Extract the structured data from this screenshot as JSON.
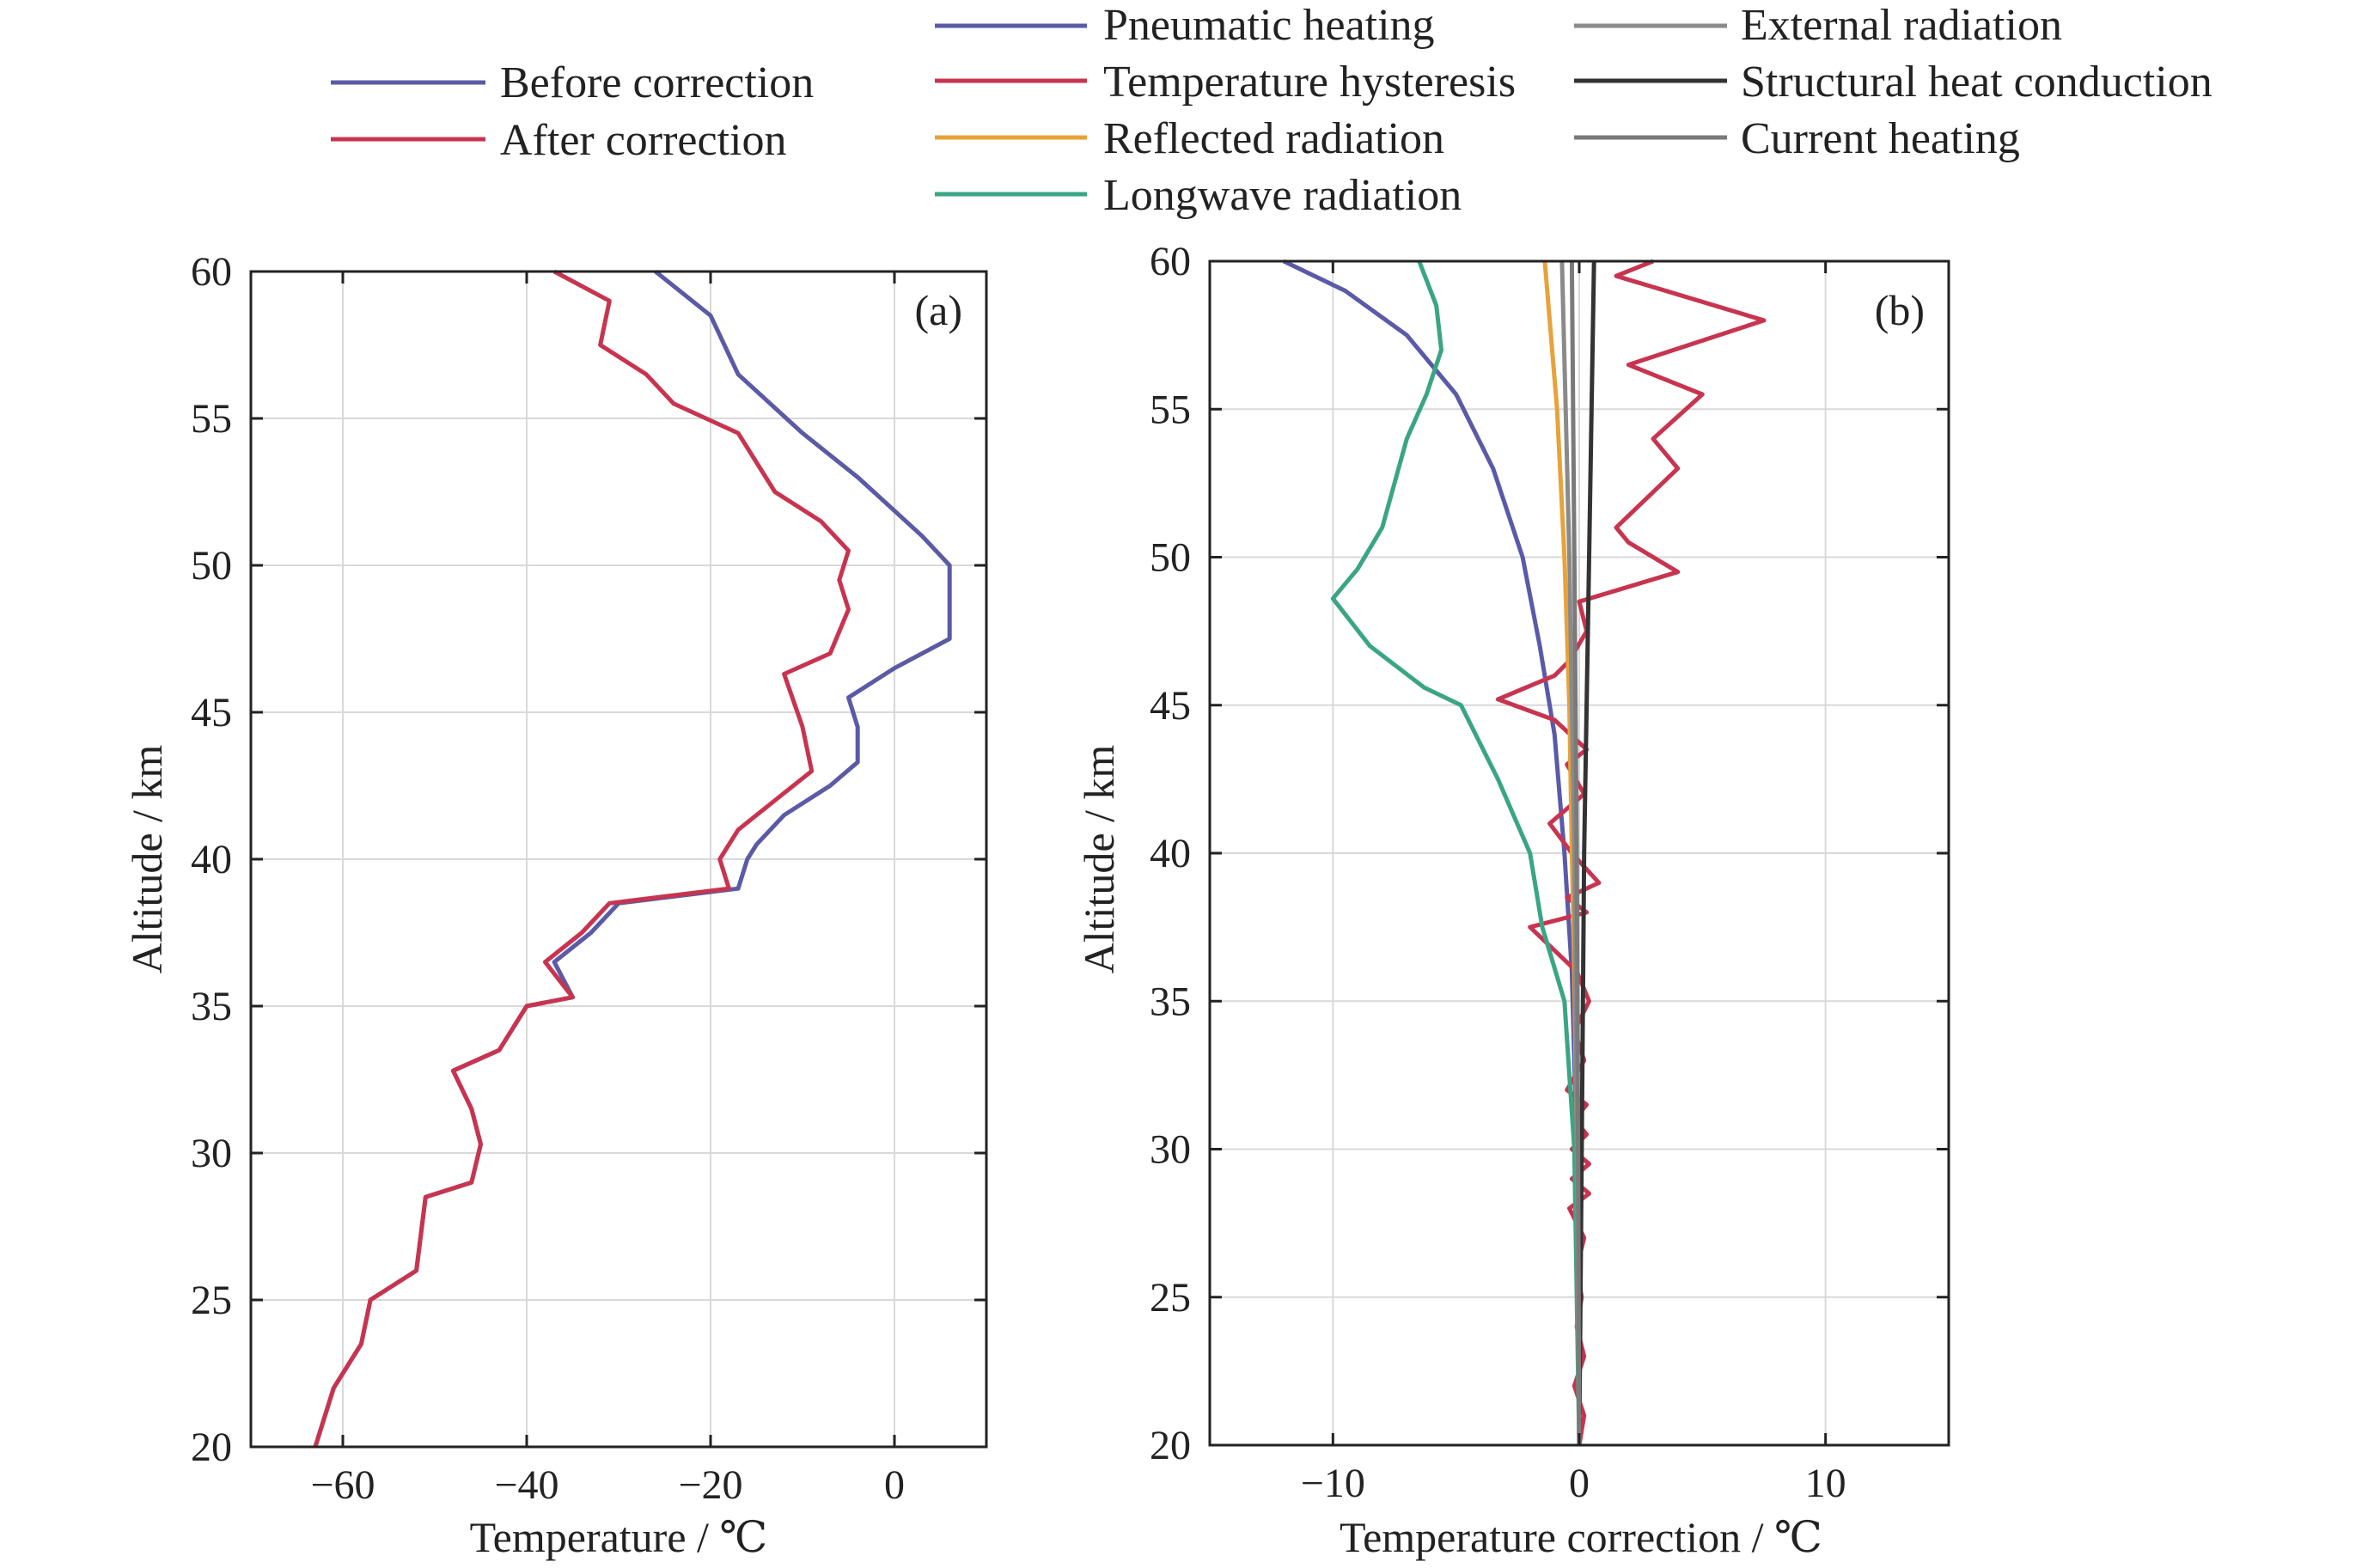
{
  "legend_left": [
    {
      "name": "Before correction",
      "color": "#5b5aa6"
    },
    {
      "name": "After correction",
      "color": "#c8344f"
    }
  ],
  "legend_right_col1": [
    {
      "name": "Pneumatic heating",
      "color": "#5a5aa8"
    },
    {
      "name": "Temperature hysteresis",
      "color": "#c8344f"
    },
    {
      "name": "Reflected radiation",
      "color": "#e8a23a"
    },
    {
      "name": "Longwave radiation",
      "color": "#3aa584"
    }
  ],
  "legend_right_col2": [
    {
      "name": "External radiation",
      "color": "#8a8a8a"
    },
    {
      "name": "Structural heat conduction",
      "color": "#333333"
    },
    {
      "name": "Current heating",
      "color": "#7a7a7a"
    }
  ],
  "chart_data": [
    {
      "type": "line",
      "panel_label": "(a)",
      "xlabel": "Temperature / ℃",
      "ylabel": "Altitude / km",
      "xlim": [
        -70,
        10
      ],
      "ylim": [
        20,
        60
      ],
      "xticks": [
        -60,
        -40,
        -20,
        0
      ],
      "xtick_labels": [
        "−60",
        "−40",
        "−20",
        "0"
      ],
      "yticks": [
        20,
        25,
        30,
        35,
        40,
        45,
        50,
        55,
        60
      ],
      "ytick_labels": [
        "20",
        "25",
        "30",
        "35",
        "40",
        "45",
        "50",
        "55",
        "60"
      ],
      "grid": true,
      "series": [
        {
          "name": "Before correction",
          "color": "#5b5aa6",
          "points": [
            [
              -63,
              20
            ],
            [
              -61,
              22
            ],
            [
              -58,
              23.5
            ],
            [
              -57,
              25
            ],
            [
              -52,
              26
            ],
            [
              -51,
              28.5
            ],
            [
              -46,
              29
            ],
            [
              -45,
              30.3
            ],
            [
              -46,
              31.5
            ],
            [
              -48,
              32.8
            ],
            [
              -43,
              33.5
            ],
            [
              -40,
              35
            ],
            [
              -35,
              35.3
            ],
            [
              -37,
              36.5
            ],
            [
              -33,
              37.5
            ],
            [
              -30,
              38.5
            ],
            [
              -17,
              39
            ],
            [
              -16,
              40
            ],
            [
              -15,
              40.5
            ],
            [
              -12,
              41.5
            ],
            [
              -7,
              42.5
            ],
            [
              -4,
              43.3
            ],
            [
              -4,
              44.5
            ],
            [
              -5,
              45.5
            ],
            [
              0,
              46.5
            ],
            [
              6,
              47.5
            ],
            [
              6,
              49
            ],
            [
              6,
              50
            ],
            [
              3,
              51
            ],
            [
              -4,
              53
            ],
            [
              -10,
              54.5
            ],
            [
              -17,
              56.5
            ],
            [
              -20,
              58.5
            ],
            [
              -26,
              60
            ]
          ]
        },
        {
          "name": "After correction",
          "color": "#c8344f",
          "points": [
            [
              -63,
              20
            ],
            [
              -61,
              22
            ],
            [
              -58,
              23.5
            ],
            [
              -57,
              25
            ],
            [
              -52,
              26
            ],
            [
              -51,
              28.5
            ],
            [
              -46,
              29
            ],
            [
              -45,
              30.3
            ],
            [
              -46,
              31.5
            ],
            [
              -48,
              32.8
            ],
            [
              -43,
              33.5
            ],
            [
              -40,
              35
            ],
            [
              -35,
              35.3
            ],
            [
              -38,
              36.5
            ],
            [
              -34,
              37.5
            ],
            [
              -31,
              38.5
            ],
            [
              -18,
              39
            ],
            [
              -19,
              40
            ],
            [
              -17,
              41
            ],
            [
              -13,
              42
            ],
            [
              -9,
              43
            ],
            [
              -10,
              44.5
            ],
            [
              -12,
              46.3
            ],
            [
              -7,
              47
            ],
            [
              -5,
              48.5
            ],
            [
              -6,
              49.5
            ],
            [
              -5,
              50.5
            ],
            [
              -8,
              51.5
            ],
            [
              -13,
              52.5
            ],
            [
              -17,
              54.5
            ],
            [
              -24,
              55.5
            ],
            [
              -27,
              56.5
            ],
            [
              -32,
              57.5
            ],
            [
              -31,
              59
            ],
            [
              -37,
              60
            ]
          ]
        }
      ]
    },
    {
      "type": "line",
      "panel_label": "(b)",
      "xlabel": "Temperature correction / ℃",
      "ylabel": "Altitude / km",
      "xlim": [
        -15,
        15
      ],
      "ylim": [
        20,
        60
      ],
      "xticks": [
        -10,
        0,
        10
      ],
      "xtick_labels": [
        "−10",
        "0",
        "10"
      ],
      "yticks": [
        20,
        25,
        30,
        35,
        40,
        45,
        50,
        55,
        60
      ],
      "ytick_labels": [
        "20",
        "25",
        "30",
        "35",
        "40",
        "45",
        "50",
        "55",
        "60"
      ],
      "grid": true,
      "series": [
        {
          "name": "Pneumatic heating",
          "color": "#5a5aa8",
          "points": [
            [
              0,
              20
            ],
            [
              -0.1,
              30
            ],
            [
              -0.3,
              36
            ],
            [
              -0.6,
              40
            ],
            [
              -1,
              44
            ],
            [
              -1.6,
              47
            ],
            [
              -2.3,
              50
            ],
            [
              -3.5,
              53
            ],
            [
              -5,
              55.5
            ],
            [
              -7,
              57.5
            ],
            [
              -9.5,
              59
            ],
            [
              -12,
              60
            ]
          ]
        },
        {
          "name": "Temperature hysteresis",
          "color": "#c8344f",
          "points": [
            [
              0,
              20
            ],
            [
              0.2,
              21
            ],
            [
              -0.2,
              22
            ],
            [
              0.2,
              23
            ],
            [
              -0.1,
              24
            ],
            [
              0.1,
              25
            ],
            [
              -0.1,
              26
            ],
            [
              0.2,
              27
            ],
            [
              -0.4,
              28
            ],
            [
              0.4,
              28.5
            ],
            [
              -0.3,
              29
            ],
            [
              0.4,
              29.5
            ],
            [
              -0.3,
              30
            ],
            [
              0.3,
              30.5
            ],
            [
              -0.2,
              31
            ],
            [
              0.3,
              31.5
            ],
            [
              -0.5,
              32
            ],
            [
              0.2,
              33
            ],
            [
              -0.2,
              34
            ],
            [
              0.4,
              35
            ],
            [
              -0.1,
              36
            ],
            [
              -2,
              37.5
            ],
            [
              0.3,
              38
            ],
            [
              -0.5,
              38.5
            ],
            [
              0.8,
              39
            ],
            [
              -0.3,
              40
            ],
            [
              -1.2,
              41
            ],
            [
              0.2,
              42
            ],
            [
              -0.5,
              43
            ],
            [
              0.3,
              43.5
            ],
            [
              -1,
              44.5
            ],
            [
              -3.3,
              45.2
            ],
            [
              -1,
              46
            ],
            [
              -0.4,
              46.5
            ],
            [
              0.3,
              47.5
            ],
            [
              0,
              48.5
            ],
            [
              4,
              49.5
            ],
            [
              2,
              50.5
            ],
            [
              1.5,
              51
            ],
            [
              4,
              53
            ],
            [
              3,
              54
            ],
            [
              5,
              55.5
            ],
            [
              2,
              56.5
            ],
            [
              7.5,
              58
            ],
            [
              1.5,
              59.5
            ],
            [
              3,
              60
            ]
          ]
        },
        {
          "name": "Reflected radiation",
          "color": "#e8a23a",
          "points": [
            [
              0,
              20
            ],
            [
              -0.1,
              30
            ],
            [
              -0.2,
              36
            ],
            [
              -0.3,
              40
            ],
            [
              -0.4,
              45
            ],
            [
              -0.6,
              50
            ],
            [
              -0.9,
              55
            ],
            [
              -1.4,
              60
            ]
          ]
        },
        {
          "name": "Longwave radiation",
          "color": "#3aa584",
          "points": [
            [
              0,
              20
            ],
            [
              -0.2,
              30
            ],
            [
              -0.6,
              35
            ],
            [
              -1.5,
              37.5
            ],
            [
              -2,
              40
            ],
            [
              -3.3,
              42.5
            ],
            [
              -4.8,
              45
            ],
            [
              -6.3,
              45.6
            ],
            [
              -8.5,
              47
            ],
            [
              -10,
              48.6
            ],
            [
              -9,
              49.6
            ],
            [
              -8,
              51
            ],
            [
              -7,
              54
            ],
            [
              -6.2,
              55.5
            ],
            [
              -5.6,
              57
            ],
            [
              -5.8,
              58.5
            ],
            [
              -6.5,
              60
            ]
          ]
        },
        {
          "name": "External radiation",
          "color": "#8a8a8a",
          "points": [
            [
              0,
              20
            ],
            [
              -0.1,
              30
            ],
            [
              -0.2,
              40
            ],
            [
              -0.4,
              50
            ],
            [
              -0.7,
              60
            ]
          ]
        },
        {
          "name": "Structural heat conduction",
          "color": "#333333",
          "points": [
            [
              0,
              20
            ],
            [
              0.1,
              30
            ],
            [
              0.2,
              40
            ],
            [
              0.4,
              50
            ],
            [
              0.6,
              60
            ]
          ]
        },
        {
          "name": "Current heating",
          "color": "#7a7a7a",
          "points": [
            [
              0,
              20
            ],
            [
              -0.05,
              30
            ],
            [
              -0.1,
              40
            ],
            [
              -0.2,
              50
            ],
            [
              -0.3,
              60
            ]
          ]
        }
      ]
    }
  ]
}
